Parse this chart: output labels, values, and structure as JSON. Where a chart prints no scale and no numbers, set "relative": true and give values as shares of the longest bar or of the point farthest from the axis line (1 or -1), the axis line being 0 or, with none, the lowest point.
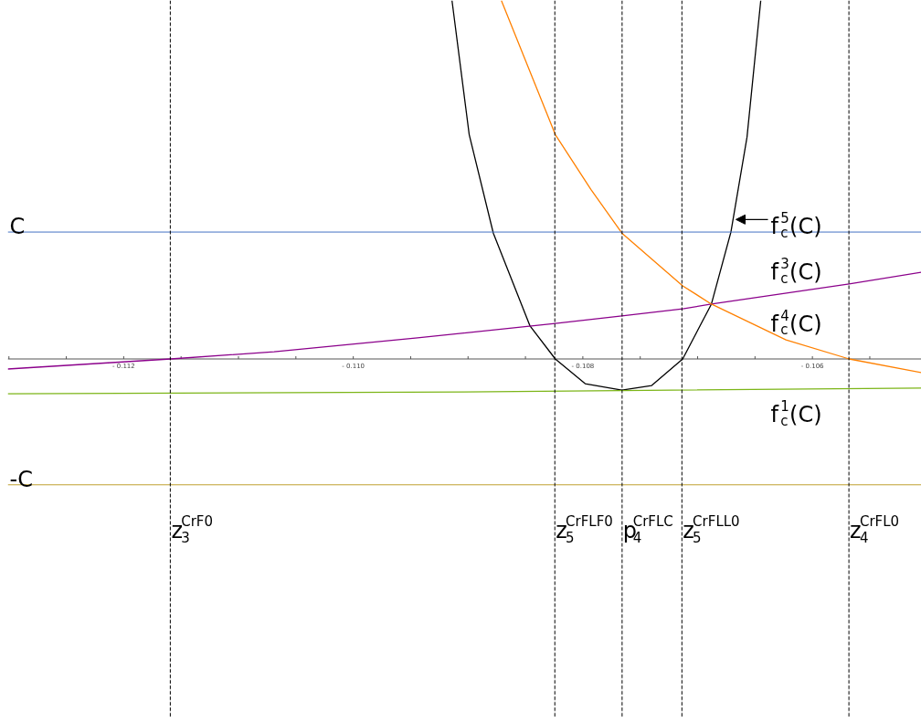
{
  "chart_data": {
    "type": "line",
    "relative": true,
    "grid": false,
    "marker": "none",
    "line_style": "solid",
    "xlim": [
      -0.11301,
      -0.10505
    ],
    "xticks": [
      {
        "value": -0.113,
        "label": null
      },
      {
        "value": -0.1125,
        "label": null
      },
      {
        "value": -0.112,
        "label": "- 0.112"
      },
      {
        "value": -0.1115,
        "label": null
      },
      {
        "value": -0.111,
        "label": null
      },
      {
        "value": -0.1105,
        "label": null
      },
      {
        "value": -0.11,
        "label": "- 0.110"
      },
      {
        "value": -0.1095,
        "label": null
      },
      {
        "value": -0.109,
        "label": null
      },
      {
        "value": -0.1085,
        "label": null
      },
      {
        "value": -0.108,
        "label": "- 0.108"
      },
      {
        "value": -0.1075,
        "label": null
      },
      {
        "value": -0.107,
        "label": null
      },
      {
        "value": -0.1065,
        "label": null
      },
      {
        "value": -0.106,
        "label": "- 0.106"
      },
      {
        "value": -0.1055,
        "label": null
      }
    ],
    "series": [
      {
        "name": "f$_{c}$$^{5}$(C)",
        "color": "#000000",
        "x": [
          -0.10914,
          -0.10899,
          -0.10878,
          -0.10846,
          -0.10824,
          -0.10798,
          -0.10766,
          -0.1074,
          -0.10713,
          -0.10688,
          -0.10671,
          -0.10657,
          -0.10645
        ],
        "values": [
          1.0,
          0.626,
          0.351,
          0.092,
          0,
          -0.069,
          -0.087,
          -0.074,
          0,
          0.153,
          0.354,
          0.618,
          1.0
        ]
      },
      {
        "name": "f$_{c}$$^{3}$(C)",
        "color": "#8b008b",
        "x": [
          -0.11301,
          -0.11159,
          -0.11069,
          -0.10944,
          -0.10824,
          -0.10766,
          -0.10713,
          -0.10688,
          -0.10568,
          -0.10505
        ],
        "values": [
          -0.028,
          0,
          0.02,
          0.059,
          0.099,
          0.12,
          0.14,
          0.153,
          0.209,
          0.242
        ]
      },
      {
        "name": "f$_{c}$$^{4}$(C)",
        "color": "#ff8000",
        "x": [
          -0.10871,
          -0.10824,
          -0.10793,
          -0.10766,
          -0.10713,
          -0.10688,
          -0.10623,
          -0.10568,
          -0.10505
        ],
        "values": [
          1.0,
          0.626,
          0.473,
          0.351,
          0.204,
          0.153,
          0.053,
          0,
          -0.038
        ]
      },
      {
        "name": "f$_{c}$$^{1}$(C)",
        "color": "#7cb518",
        "x": [
          -0.11301,
          -0.10903,
          -0.10505
        ],
        "values": [
          -0.097,
          -0.092,
          -0.081
        ]
      }
    ],
    "ref_lines": [
      {
        "axis": "y",
        "value": 0.354,
        "label": "C",
        "color": "#4472c4",
        "line_style": "solid"
      },
      {
        "axis": "y",
        "value": -0.351,
        "label": "-C",
        "color": "#bfa030",
        "line_style": "solid"
      },
      {
        "axis": "x",
        "value": -0.111594,
        "label": "z$_{3}$$^{CrF0}$",
        "color": "#000000",
        "line_style": "dashed"
      },
      {
        "axis": "x",
        "value": -0.108244,
        "label": "z$_{5}$$^{CrFLF0}$",
        "color": "#000000",
        "line_style": "dashed"
      },
      {
        "axis": "x",
        "value": -0.107658,
        "label": "p$_{4}$$^{CrFLC}$",
        "color": "#000000",
        "line_style": "dashed"
      },
      {
        "axis": "x",
        "value": -0.107137,
        "label": "z$_{5}$$^{CrFLL0}$",
        "color": "#000000",
        "line_style": "dashed"
      },
      {
        "axis": "x",
        "value": -0.105682,
        "label": "z$_{4}$$^{CrFL0}$",
        "color": "#000000",
        "line_style": "dashed"
      }
    ]
  }
}
